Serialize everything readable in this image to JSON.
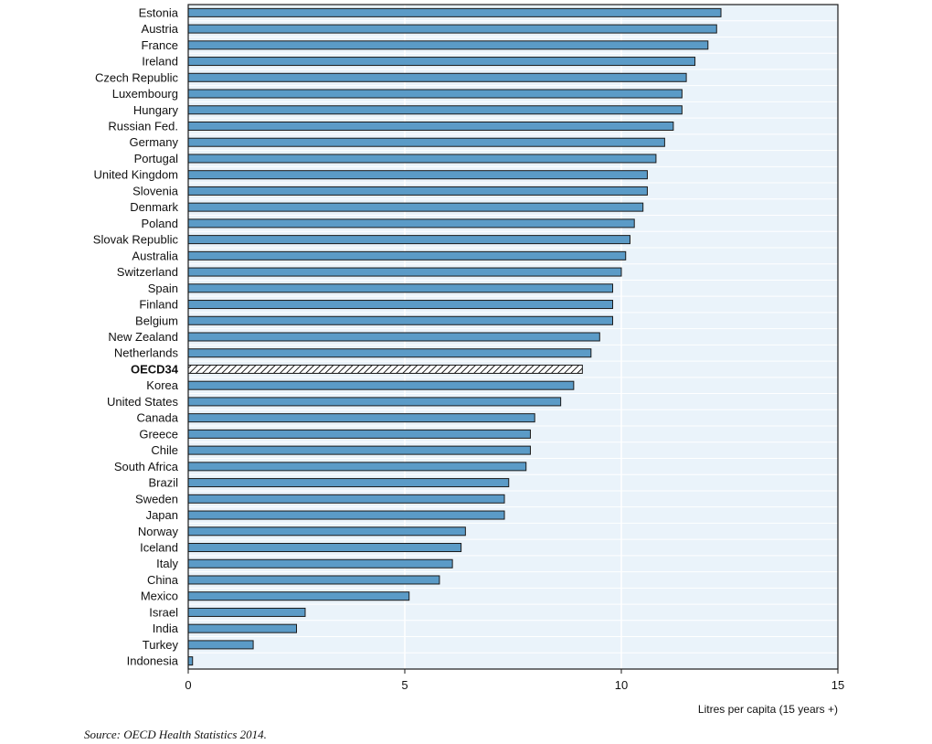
{
  "chart_data": {
    "type": "bar",
    "orientation": "horizontal",
    "highlight_category": "OECD34",
    "categories": [
      "Estonia",
      "Austria",
      "France",
      "Ireland",
      "Czech Republic",
      "Luxembourg",
      "Hungary",
      "Russian Fed.",
      "Germany",
      "Portugal",
      "United Kingdom",
      "Slovenia",
      "Denmark",
      "Poland",
      "Slovak Republic",
      "Australia",
      "Switzerland",
      "Spain",
      "Finland",
      "Belgium",
      "New Zealand",
      "Netherlands",
      "OECD34",
      "Korea",
      "United States",
      "Canada",
      "Greece",
      "Chile",
      "South Africa",
      "Brazil",
      "Sweden",
      "Japan",
      "Norway",
      "Iceland",
      "Italy",
      "China",
      "Mexico",
      "Israel",
      "India",
      "Turkey",
      "Indonesia"
    ],
    "values": [
      12.3,
      12.2,
      12.0,
      11.7,
      11.5,
      11.4,
      11.4,
      11.2,
      11.0,
      10.8,
      10.6,
      10.6,
      10.5,
      10.3,
      10.2,
      10.1,
      10.0,
      9.8,
      9.8,
      9.8,
      9.5,
      9.3,
      9.1,
      8.9,
      8.6,
      8.0,
      7.9,
      7.9,
      7.8,
      7.4,
      7.3,
      7.3,
      6.4,
      6.3,
      6.1,
      5.8,
      5.1,
      2.7,
      2.5,
      1.5,
      0.1
    ],
    "xlim": [
      0,
      15
    ],
    "xticks": [
      "0",
      "5",
      "10",
      "15"
    ],
    "xlabel": "Litres per capita (15 years +)",
    "title": "",
    "grid": true
  },
  "source_note": "Source: OECD Health Statistics 2014.",
  "colors": {
    "bar_fill": "#5b9bc7",
    "bar_stroke": "#1a1a1a",
    "plot_background": "#eaf3fa",
    "gridline": "#ffffff"
  }
}
